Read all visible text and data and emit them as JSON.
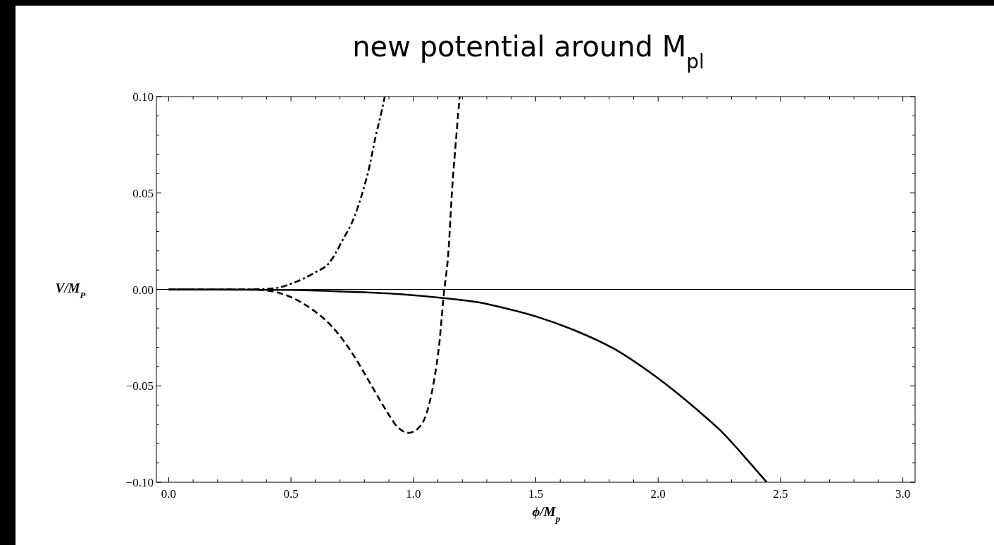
{
  "chart_data": {
    "type": "line",
    "title": "new potential around M$_{pl}$",
    "xlabel": "ϕ/M$_{p}$",
    "ylabel": "V/M$_{P}$",
    "xlim": [
      -0.05,
      3.05
    ],
    "ylim": [
      -0.1,
      0.1
    ],
    "xticks": [
      {
        "value": 0,
        "label": "0.0"
      },
      {
        "value": 0.1,
        "label": null
      },
      {
        "value": 0.2,
        "label": null
      },
      {
        "value": 0.3,
        "label": null
      },
      {
        "value": 0.4,
        "label": null
      },
      {
        "value": 0.5,
        "label": "0.5"
      },
      {
        "value": 0.6,
        "label": null
      },
      {
        "value": 0.7,
        "label": null
      },
      {
        "value": 0.8,
        "label": null
      },
      {
        "value": 0.9,
        "label": null
      },
      {
        "value": 1,
        "label": "1.0"
      },
      {
        "value": 1.1,
        "label": null
      },
      {
        "value": 1.2,
        "label": null
      },
      {
        "value": 1.3,
        "label": null
      },
      {
        "value": 1.4,
        "label": null
      },
      {
        "value": 1.5,
        "label": "1.5"
      },
      {
        "value": 1.6,
        "label": null
      },
      {
        "value": 1.7,
        "label": null
      },
      {
        "value": 1.8,
        "label": null
      },
      {
        "value": 1.9,
        "label": null
      },
      {
        "value": 2,
        "label": "2.0"
      },
      {
        "value": 2.1,
        "label": null
      },
      {
        "value": 2.2,
        "label": null
      },
      {
        "value": 2.3,
        "label": null
      },
      {
        "value": 2.4,
        "label": null
      },
      {
        "value": 2.5,
        "label": "2.5"
      },
      {
        "value": 2.6,
        "label": null
      },
      {
        "value": 2.7,
        "label": null
      },
      {
        "value": 2.8,
        "label": null
      },
      {
        "value": 2.9,
        "label": null
      },
      {
        "value": 3,
        "label": "3.0"
      }
    ],
    "yticks": [
      {
        "value": -0.1,
        "label": "−0.10"
      },
      {
        "value": -0.09,
        "label": null
      },
      {
        "value": -0.08,
        "label": null
      },
      {
        "value": -0.07,
        "label": null
      },
      {
        "value": -0.06,
        "label": null
      },
      {
        "value": -0.05,
        "label": "−0.05"
      },
      {
        "value": -0.04,
        "label": null
      },
      {
        "value": -0.03,
        "label": null
      },
      {
        "value": -0.02,
        "label": null
      },
      {
        "value": -0.01,
        "label": null
      },
      {
        "value": 0,
        "label": "0.00"
      },
      {
        "value": 0.01,
        "label": null
      },
      {
        "value": 0.02,
        "label": null
      },
      {
        "value": 0.03,
        "label": null
      },
      {
        "value": 0.04,
        "label": null
      },
      {
        "value": 0.05,
        "label": "0.05"
      },
      {
        "value": 0.06,
        "label": null
      },
      {
        "value": 0.07,
        "label": null
      },
      {
        "value": 0.08,
        "label": null
      },
      {
        "value": 0.09,
        "label": null
      },
      {
        "value": 0.1,
        "label": "0.10"
      }
    ],
    "ref_lines": [
      {
        "axis": "y",
        "value": 0,
        "color": "#000000"
      }
    ],
    "series": [
      {
        "color": "#000000",
        "line_style": "solid",
        "x": [
          0,
          0.495,
          0.715,
          0.936,
          1.123,
          1.266,
          1.376,
          1.5,
          1.655,
          1.82,
          1.986,
          2.151,
          2.262,
          2.372,
          2.444
        ],
        "values": [
          0,
          -0.0003,
          -0.0011,
          -0.0024,
          -0.0045,
          -0.0067,
          -0.0098,
          -0.014,
          -0.021,
          -0.0308,
          -0.0448,
          -0.0615,
          -0.0741,
          -0.0895,
          -0.1
        ]
      },
      {
        "color": "#000000",
        "line_style": "dashed",
        "x": [
          0,
          0.32,
          0.41,
          0.49,
          0.58,
          0.67,
          0.76,
          0.825,
          0.89,
          0.935,
          0.98,
          1.02,
          1.057,
          1.084,
          1.106,
          1.123,
          1.144,
          1.158,
          1.173,
          1.189
        ],
        "values": [
          0,
          0,
          -0.0007,
          -0.0035,
          -0.0098,
          -0.0196,
          -0.035,
          -0.049,
          -0.063,
          -0.0713,
          -0.0744,
          -0.072,
          -0.063,
          -0.0476,
          -0.028,
          -0.0042,
          0.0209,
          0.0514,
          0.0758,
          0.0999
        ]
      },
      {
        "color": "#000000",
        "line_style": "dashdot",
        "x": [
          0,
          0.31,
          0.425,
          0.52,
          0.597,
          0.655,
          0.712,
          0.76,
          0.789,
          0.818,
          0.846,
          0.871,
          0.883
        ],
        "values": [
          0,
          0,
          0.0005,
          0.0039,
          0.0087,
          0.0136,
          0.0258,
          0.038,
          0.049,
          0.0624,
          0.0794,
          0.0928,
          0.0999
        ]
      }
    ]
  }
}
